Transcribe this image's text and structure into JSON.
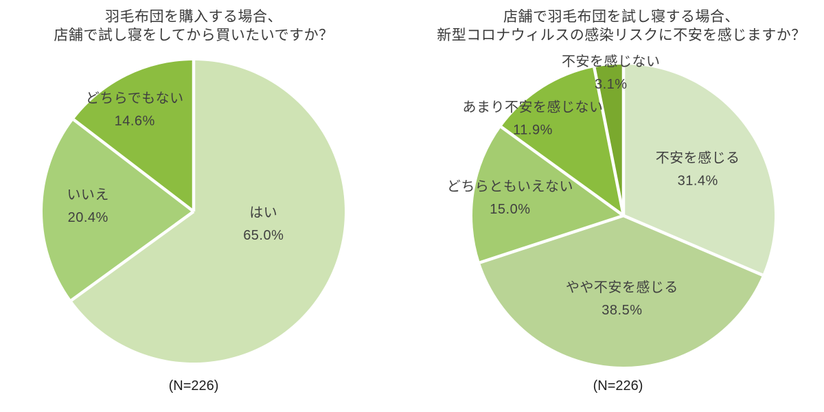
{
  "styles": {
    "background": "#ffffff",
    "title_color": "#3a3a3a",
    "label_color": "#404040",
    "caption_color": "#1f1f1f",
    "separator_color": "#ffffff"
  },
  "chart_data": [
    {
      "type": "pie",
      "title_lines": [
        "羽毛布団を購入する場合、",
        "店舗で試し寝をしてから買いたいですか？"
      ],
      "caption": "(N=226)",
      "start_angle_deg": 0,
      "direction": "clockwise",
      "legend": "none",
      "slices": [
        {
          "label": "はい",
          "value": 65.0,
          "pct_label": "65.0%",
          "color": "#cfe3b4",
          "label_pos": {
            "angle": 100,
            "dist": 0.47
          }
        },
        {
          "label": "いいえ",
          "value": 20.4,
          "pct_label": "20.4%",
          "color": "#a8d078",
          "label_pos": {
            "angle": 273,
            "dist": 0.7
          }
        },
        {
          "label": "どちらでもない",
          "value": 14.6,
          "pct_label": "14.6%",
          "color": "#8cbd40",
          "label_pos": {
            "angle": 330,
            "dist": 0.78
          }
        }
      ]
    },
    {
      "type": "pie",
      "title_lines": [
        "店舗で羽毛布団を試し寝する場合、",
        "新型コロナウィルスの感染リスクに不安を感じますか？"
      ],
      "caption": "(N=226)",
      "start_angle_deg": 0,
      "direction": "clockwise",
      "legend": "none",
      "slices": [
        {
          "label": "不安を感じる",
          "value": 31.4,
          "pct_label": "31.4%",
          "color": "#d5e6c2",
          "label_pos": {
            "angle": 58,
            "dist": 0.58
          }
        },
        {
          "label": "やや不安を感じる",
          "value": 38.5,
          "pct_label": "38.5%",
          "color": "#b9d495",
          "label_pos": {
            "angle": 181,
            "dist": 0.55
          }
        },
        {
          "label": "どちらともいえない",
          "value": 15.0,
          "pct_label": "15.0%",
          "color": "#a4cc70",
          "label_pos": {
            "angle": 279,
            "dist": 0.76
          }
        },
        {
          "label": "あまり不安を感じない",
          "value": 11.9,
          "pct_label": "11.9%",
          "color": "#8bbd3e",
          "label_pos": {
            "angle": 317,
            "dist": 0.88
          }
        },
        {
          "label": "不安を感じない",
          "value": 3.1,
          "pct_label": "3.1%",
          "color": "#7aa92e",
          "label_pos": {
            "angle": 355,
            "dist": 0.95
          }
        }
      ]
    }
  ]
}
